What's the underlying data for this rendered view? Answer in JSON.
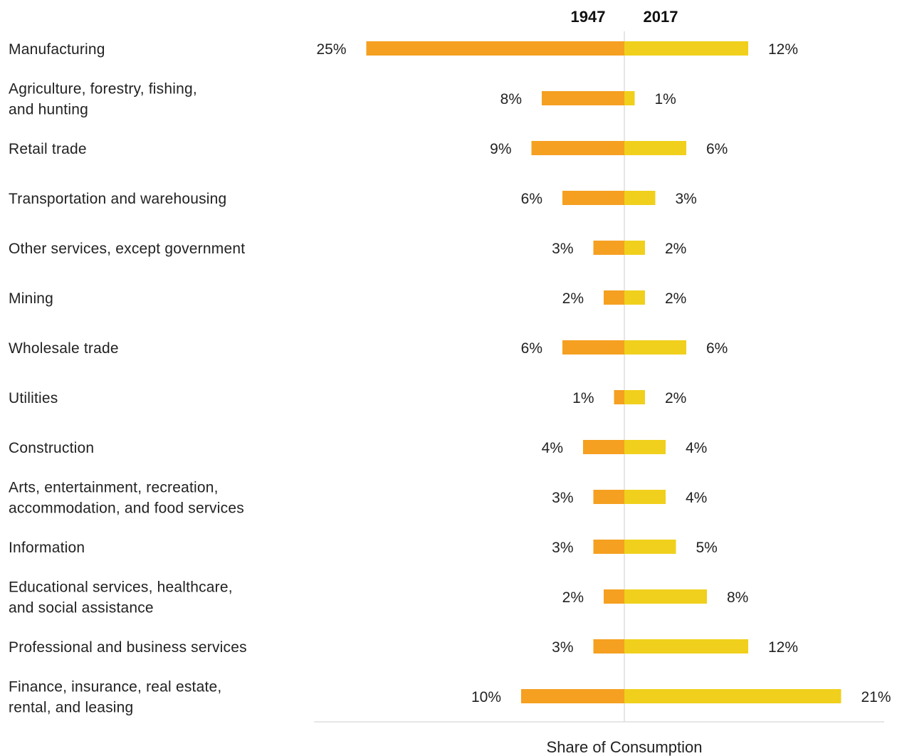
{
  "colors": {
    "left_bar": "#F5A021",
    "right_bar": "#F0D01C",
    "center_line": "#DDDDDD",
    "axis_line": "#DDDDDD",
    "text": "#222222"
  },
  "chart_data": {
    "type": "bar",
    "orientation": "diverging-horizontal",
    "xlabel": "Share of Consumption",
    "series": [
      {
        "name": "1947",
        "side": "left",
        "values": [
          25,
          8,
          9,
          6,
          3,
          2,
          6,
          1,
          4,
          3,
          3,
          2,
          3,
          10
        ]
      },
      {
        "name": "2017",
        "side": "right",
        "values": [
          12,
          1,
          6,
          3,
          2,
          2,
          6,
          2,
          4,
          4,
          5,
          8,
          12,
          21
        ]
      }
    ],
    "categories": [
      [
        "Manufacturing"
      ],
      [
        "Agriculture, forestry, fishing,",
        "and hunting"
      ],
      [
        "Retail trade"
      ],
      [
        "Transportation and warehousing"
      ],
      [
        "Other services, except government"
      ],
      [
        "Mining"
      ],
      [
        "Wholesale trade"
      ],
      [
        "Utilities"
      ],
      [
        "Construction"
      ],
      [
        "Arts, entertainment, recreation,",
        "accommodation, and food services"
      ],
      [
        "Information"
      ],
      [
        "Educational services, healthcare,",
        "and social assistance"
      ],
      [
        "Professional and business services"
      ],
      [
        "Finance, insurance, real estate,",
        "rental, and leasing"
      ]
    ],
    "value_labels_left": [
      "25%",
      "8%",
      "9%",
      "6%",
      "3%",
      "2%",
      "6%",
      "1%",
      "4%",
      "3%",
      "3%",
      "2%",
      "3%",
      "10%"
    ],
    "value_labels_right": [
      "12%",
      "1%",
      "6%",
      "3%",
      "2%",
      "2%",
      "6%",
      "2%",
      "4%",
      "4%",
      "5%",
      "8%",
      "12%",
      "21%"
    ],
    "grid": false,
    "legend": "none"
  }
}
